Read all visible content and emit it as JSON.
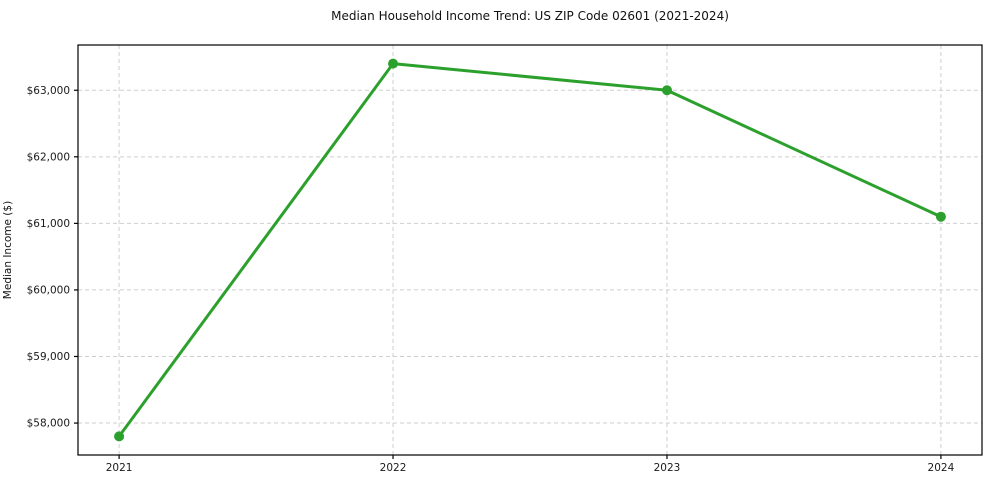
{
  "chart_data": {
    "type": "line",
    "title": "Median Household Income Trend: US ZIP Code 02601 (2021-2024)",
    "xlabel": "",
    "ylabel": "Median Income ($)",
    "x": [
      2021,
      2022,
      2023,
      2024
    ],
    "series": [
      {
        "name": "Median Household Income",
        "values": [
          57800,
          63400,
          63000,
          61100
        ]
      }
    ],
    "xticks": [
      2021,
      2022,
      2023,
      2024
    ],
    "xtick_labels": [
      "2021",
      "2022",
      "2023",
      "2024"
    ],
    "yticks": [
      58000,
      59000,
      60000,
      61000,
      62000,
      63000
    ],
    "ytick_labels": [
      "$58,000",
      "$59,000",
      "$60,000",
      "$61,000",
      "$62,000",
      "$63,000"
    ],
    "xlim": [
      2020.85,
      2024.15
    ],
    "ylim": [
      57520,
      63680
    ],
    "grid": true,
    "legend": "none",
    "colors": {
      "line": "#2ca02c",
      "marker": "#2ca02c",
      "grid": "#cfcfcf",
      "frame": "#000000",
      "background": "#ffffff",
      "text": "#1a1a1a"
    }
  }
}
